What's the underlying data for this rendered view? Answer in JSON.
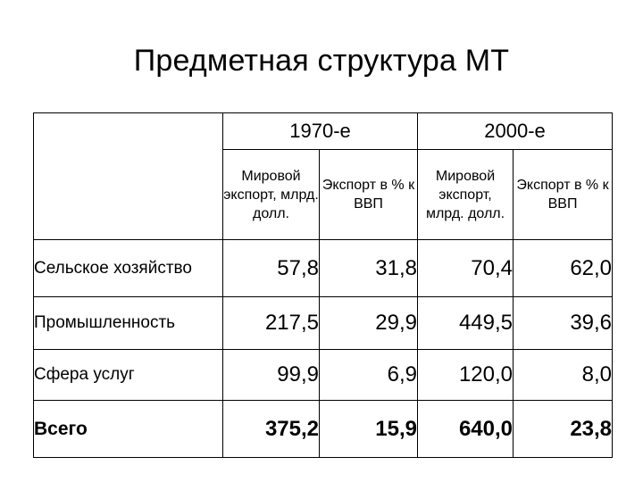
{
  "title": "Предметная структура МТ",
  "table": {
    "periods": [
      "1970-е",
      "2000-е"
    ],
    "subheaders": [
      "Мировой экспорт, млрд. долл.",
      "Экспорт в % к ВВП",
      "Мировой экспорт, млрд. долл.",
      "Экспорт в % к ВВП"
    ],
    "rows": [
      {
        "label": "Сельское хозяйство",
        "values": [
          "57,8",
          "31,8",
          "70,4",
          "62,0"
        ]
      },
      {
        "label": "Промышленность",
        "values": [
          "217,5",
          "29,9",
          "449,5",
          "39,6"
        ]
      },
      {
        "label": "Сфера услуг",
        "values": [
          "99,9",
          "6,9",
          "120,0",
          "8,0"
        ]
      },
      {
        "label": "Всего",
        "values": [
          "375,2",
          "15,9",
          "640,0",
          "23,8"
        ]
      }
    ]
  }
}
